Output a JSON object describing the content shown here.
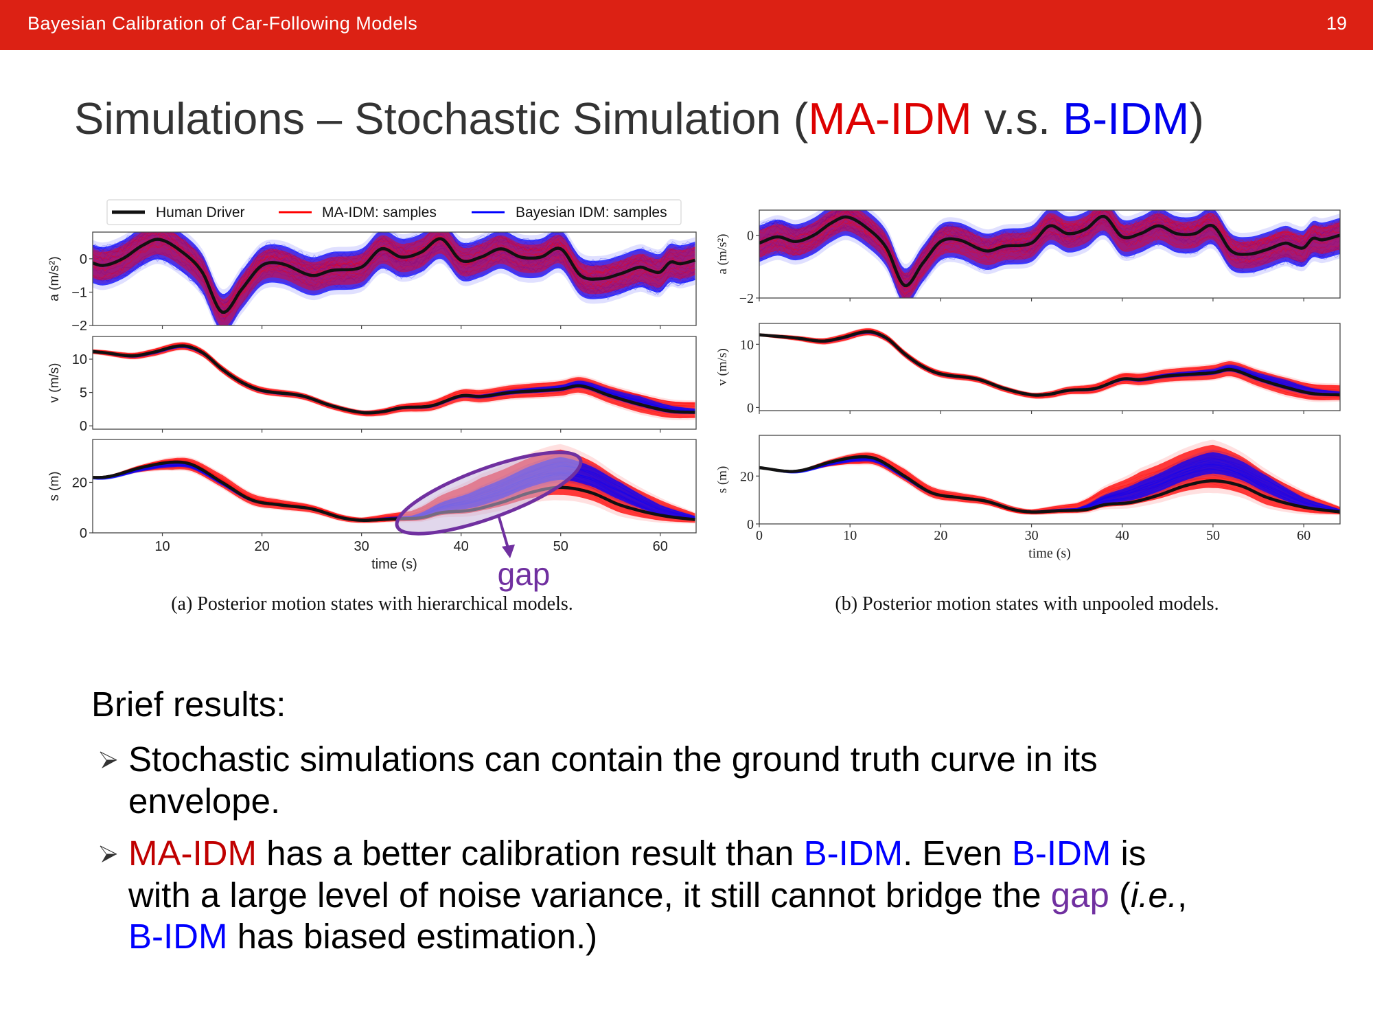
{
  "header": {
    "title": "Bayesian Calibration of Car-Following Models",
    "page_number": "19",
    "color": "#dc2114"
  },
  "slide_title": {
    "prefix": "Simulations – Stochastic Simulation (",
    "ma_idm": "MA-IDM",
    "vs": " v.s. ",
    "b_idm": "B-IDM",
    "suffix": ")"
  },
  "colors": {
    "ma_idm": "#c00000",
    "b_idm": "#0000ff",
    "gap": "#7030a0",
    "human": "#111111"
  },
  "legend": [
    {
      "label": "Human Driver",
      "color": "#111111"
    },
    {
      "label": "MA-IDM: samples",
      "color": "#ff0000"
    },
    {
      "label": "Bayesian IDM: samples",
      "color": "#0000ff"
    }
  ],
  "chart_data": [
    {
      "type": "line",
      "caption": "(a) Posterior motion states with hierarchical models.",
      "xlabel": "time (s)",
      "xlim": [
        3,
        63.6
      ],
      "xticks": [
        10,
        20,
        30,
        40,
        50,
        60
      ],
      "legend_placement": "top",
      "annotation": {
        "text": "gap",
        "target": "s panel, t≈35–50 s, gap between B-IDM samples and Human Driver"
      },
      "panels": [
        {
          "key": "a",
          "ylabel": "a (m/s²)",
          "ylim": [
            -2,
            0.8
          ],
          "yticks": [
            0,
            -1,
            -2
          ]
        },
        {
          "key": "v",
          "ylabel": "v (m/s)",
          "ylim": [
            -0.5,
            13.4
          ],
          "yticks": [
            0,
            5,
            10
          ]
        },
        {
          "key": "s",
          "ylabel": "s (m)",
          "ylim": [
            0,
            37
          ],
          "yticks": [
            0,
            20
          ]
        }
      ]
    },
    {
      "type": "line",
      "caption": "(b) Posterior motion states with unpooled models.",
      "xlabel": "time (s)",
      "xlim": [
        0,
        64
      ],
      "xticks": [
        0,
        10,
        20,
        30,
        40,
        50,
        60
      ],
      "panels": [
        {
          "key": "a",
          "ylabel": "a (m/s²)",
          "ylim": [
            -2,
            0.8
          ],
          "yticks": [
            0,
            -2
          ]
        },
        {
          "key": "v",
          "ylabel": "v (m/s)",
          "ylim": [
            -0.5,
            13.3
          ],
          "yticks": [
            0,
            10
          ]
        },
        {
          "key": "s",
          "ylabel": "s (m)",
          "ylim": [
            0,
            37
          ],
          "yticks": [
            0,
            20
          ]
        }
      ]
    }
  ],
  "series": {
    "human_driver": {
      "a": [
        [
          0,
          -0.25
        ],
        [
          2,
          -0.05
        ],
        [
          4,
          -0.2
        ],
        [
          6,
          0
        ],
        [
          8,
          0.4
        ],
        [
          9.7,
          0.58
        ],
        [
          12,
          0.2
        ],
        [
          14,
          -0.4
        ],
        [
          16,
          -1.6
        ],
        [
          18,
          -0.9
        ],
        [
          20,
          -0.2
        ],
        [
          22,
          -0.15
        ],
        [
          25,
          -0.5
        ],
        [
          27,
          -0.35
        ],
        [
          30,
          -0.25
        ],
        [
          32,
          0.3
        ],
        [
          34,
          0.05
        ],
        [
          36,
          0.2
        ],
        [
          38,
          0.6
        ],
        [
          40,
          -0.05
        ],
        [
          42,
          0.05
        ],
        [
          44,
          0.3
        ],
        [
          46,
          0.05
        ],
        [
          48,
          0.05
        ],
        [
          50,
          0.3
        ],
        [
          52,
          -0.5
        ],
        [
          54,
          -0.6
        ],
        [
          56,
          -0.45
        ],
        [
          58,
          -0.25
        ],
        [
          59,
          -0.35
        ],
        [
          60,
          -0.4
        ],
        [
          61,
          -0.1
        ],
        [
          62,
          -0.15
        ],
        [
          64,
          0
        ]
      ],
      "v": [
        [
          0,
          11.5
        ],
        [
          4,
          11
        ],
        [
          7,
          10.5
        ],
        [
          9,
          11
        ],
        [
          12,
          12
        ],
        [
          14,
          11
        ],
        [
          16,
          8.5
        ],
        [
          18,
          6.5
        ],
        [
          20,
          5.3
        ],
        [
          24,
          4.5
        ],
        [
          27,
          3
        ],
        [
          30,
          2
        ],
        [
          32,
          2.1
        ],
        [
          34,
          2.7
        ],
        [
          37,
          3
        ],
        [
          40,
          4.5
        ],
        [
          42,
          4.4
        ],
        [
          45,
          5
        ],
        [
          50,
          5.5
        ],
        [
          52,
          6
        ],
        [
          55,
          4.5
        ],
        [
          58,
          3.2
        ],
        [
          61,
          2.2
        ],
        [
          64,
          2
        ]
      ],
      "s": [
        [
          0,
          23.5
        ],
        [
          4,
          22
        ],
        [
          8,
          26
        ],
        [
          11,
          28
        ],
        [
          13,
          27
        ],
        [
          16,
          20
        ],
        [
          19,
          13
        ],
        [
          22,
          11
        ],
        [
          25,
          9.5
        ],
        [
          28,
          6
        ],
        [
          30,
          5
        ],
        [
          33,
          5.5
        ],
        [
          36,
          6
        ],
        [
          38,
          8
        ],
        [
          41,
          9
        ],
        [
          44,
          12
        ],
        [
          47,
          16
        ],
        [
          50,
          18
        ],
        [
          53,
          16
        ],
        [
          56,
          11
        ],
        [
          60,
          7
        ],
        [
          64,
          5
        ]
      ]
    },
    "ma_idm_envelope_offsets": {
      "a": [
        [
          0,
          -0.45,
          0.4
        ],
        [
          64,
          -0.45,
          0.4
        ]
      ],
      "v": [
        [
          0,
          -0.2,
          0.2
        ],
        [
          10,
          -0.6,
          0.5
        ],
        [
          20,
          -0.5,
          0.5
        ],
        [
          30,
          -0.5,
          0.3
        ],
        [
          40,
          -0.8,
          0.9
        ],
        [
          50,
          -1,
          1.2
        ],
        [
          58,
          -1.2,
          1.5
        ],
        [
          64,
          -0.8,
          1.5
        ]
      ],
      "s": [
        [
          0,
          -0.3,
          0.3
        ],
        [
          5,
          -0.5,
          0.5
        ],
        [
          11,
          -3,
          1.5
        ],
        [
          16,
          -2,
          3
        ],
        [
          25,
          -1.5,
          1.5
        ],
        [
          30,
          -1,
          1
        ],
        [
          35,
          -1,
          3
        ],
        [
          42,
          -1,
          12
        ],
        [
          50,
          -3,
          15
        ],
        [
          56,
          -3,
          10
        ],
        [
          64,
          -1,
          2
        ]
      ]
    },
    "b_idm_envelope_offsets": {
      "a": [
        [
          0,
          -0.6,
          0.55
        ],
        [
          64,
          -0.6,
          0.55
        ]
      ],
      "v": [
        [
          0,
          -0.1,
          0.1
        ],
        [
          10,
          -0.3,
          0.2
        ],
        [
          30,
          -0.2,
          0.2
        ],
        [
          40,
          -0.3,
          0.2
        ],
        [
          50,
          -0.3,
          0.6
        ],
        [
          58,
          -0.3,
          1.2
        ],
        [
          64,
          -0.2,
          0.5
        ]
      ],
      "s": [
        [
          0,
          -0.2,
          0.2
        ],
        [
          11,
          -2,
          0
        ],
        [
          20,
          -0.5,
          0.5
        ],
        [
          30,
          -0.5,
          0.5
        ],
        [
          35,
          0,
          1
        ],
        [
          42,
          1,
          8
        ],
        [
          50,
          3,
          12
        ],
        [
          56,
          2,
          9
        ],
        [
          60,
          0,
          4
        ],
        [
          64,
          0,
          1
        ]
      ]
    }
  },
  "body": {
    "heading": "Brief results:",
    "bullets": [
      {
        "lines": [
          [
            {
              "text": "Stochastic simulations can contain the ground truth curve in its",
              "color": "text"
            }
          ],
          [
            {
              "text": "envelope.",
              "color": "text"
            }
          ]
        ]
      },
      {
        "lines": [
          [
            {
              "text": "MA-IDM",
              "color": "ma_idm"
            },
            {
              "text": " has a better calibration result than ",
              "color": "text"
            },
            {
              "text": "B-IDM",
              "color": "b_idm"
            },
            {
              "text": ". Even ",
              "color": "text"
            },
            {
              "text": "B-IDM",
              "color": "b_idm"
            },
            {
              "text": " is",
              "color": "text"
            }
          ],
          [
            {
              "text": "with a large level of noise variance, it still cannot bridge the ",
              "color": "text"
            },
            {
              "text": "gap",
              "color": "gap"
            },
            {
              "text": " (",
              "color": "text"
            },
            {
              "text": "i.e.",
              "color": "text",
              "italic": true
            },
            {
              "text": ",",
              "color": "text"
            }
          ],
          [
            {
              "text": "B-IDM",
              "color": "b_idm"
            },
            {
              "text": " has biased estimation.)",
              "color": "text"
            }
          ]
        ]
      }
    ]
  }
}
